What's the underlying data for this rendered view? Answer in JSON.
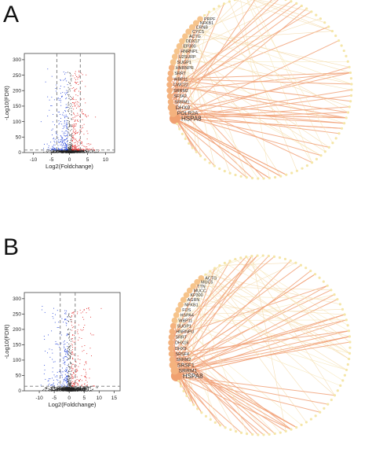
{
  "panels": [
    {
      "letter": "A",
      "chart_data": {
        "type": "scatter",
        "xlabel": "Log2(Foldchange)",
        "ylabel": "-Log10(FDR)",
        "xlim": [
          -12.5,
          12.5
        ],
        "ylim": [
          0,
          320
        ],
        "xticks": [
          -10,
          -5,
          0,
          5,
          10
        ],
        "yticks": [
          0,
          50,
          100,
          150,
          200,
          250,
          300
        ],
        "fc_thresholds": [
          -3.5,
          3
        ],
        "fdr_threshold": 8,
        "grid": false,
        "colors": {
          "down": "#1f3fd8",
          "up": "#e02020",
          "ns": "#222222",
          "line": "#777777"
        }
      },
      "network": {
        "labels": [
          "HSPA8",
          "POLR2A",
          "DHX9",
          "SRRM1",
          "SF3A2",
          "SRRM2",
          "CWC22",
          "WBP11",
          "SRRT",
          "HNRNPR",
          "SUGP1",
          "U2SURP",
          "HNRNPL",
          "EP300",
          "DDX17",
          "ACTG",
          "CYCS",
          "CRNB",
          "NFKB1",
          "PRPF"
        ]
      }
    },
    {
      "letter": "B",
      "chart_data": {
        "type": "scatter",
        "xlabel": "Log2(Foldchange)",
        "ylabel": "-Log10(FDR)",
        "xlim": [
          -15,
          17
        ],
        "ylim": [
          0,
          320
        ],
        "xticks": [
          -10,
          -5,
          0,
          5,
          10,
          15
        ],
        "yticks": [
          0,
          50,
          100,
          150,
          200,
          250,
          300
        ],
        "fc_thresholds": [
          -3,
          2
        ],
        "fdr_threshold": 15,
        "grid": false,
        "colors": {
          "down": "#1f3fd8",
          "up": "#e02020",
          "ns": "#222222",
          "line": "#777777"
        }
      },
      "network": {
        "labels": [
          "HSPA8",
          "SRRM1",
          "SRSF1",
          "SRRM2",
          "SRSF4",
          "DHX9",
          "DHX16",
          "SRRT",
          "HNRNPU",
          "SUGP1",
          "WBP11",
          "HSPA4",
          "FOS",
          "NFKB1",
          "AGRN",
          "KP300",
          "MUCC",
          "TTN",
          "MUC5",
          "ACTG"
        ]
      }
    }
  ]
}
